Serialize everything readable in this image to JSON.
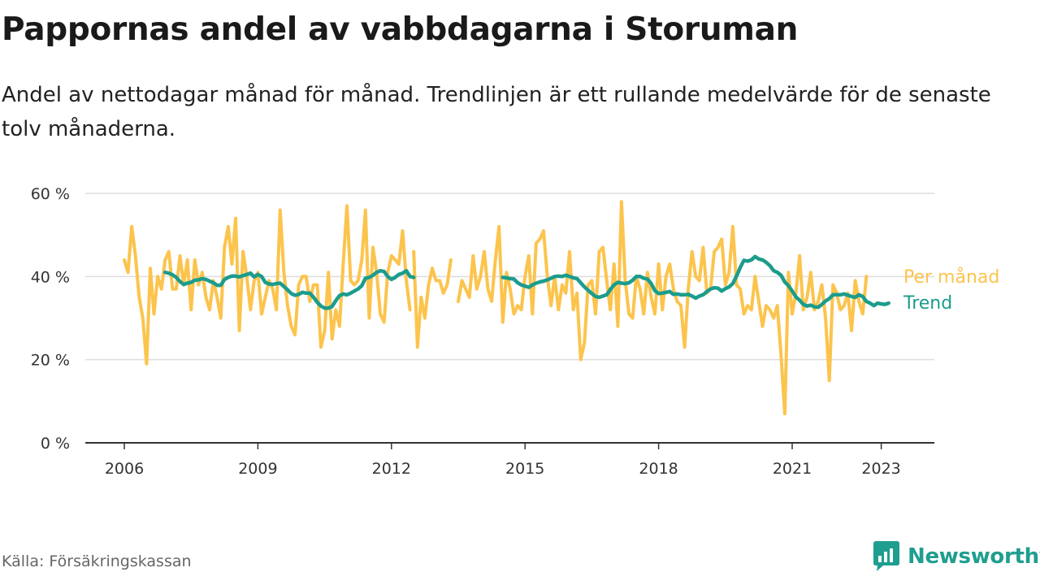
{
  "title": "Pappornas andel av vabbdagarna i Storuman",
  "subtitle": "Andel av nettodagar månad för månad. Trendlinjen är ett rullande medelvärde för de senaste tolv månaderna.",
  "source": "Källa: Försäkringskassan",
  "brand": {
    "name": "Newsworthy",
    "icon": "newsworthy-chart-logo-icon"
  },
  "colors": {
    "monthly": "#fcc44d",
    "trend": "#1c9c8c",
    "grid": "#dddddd",
    "axis": "#333333"
  },
  "chart_data": {
    "type": "line",
    "x_unit": "year (decimal, monthly points)",
    "xlim": [
      2005.8,
      2024.0
    ],
    "ylim": [
      0,
      60
    ],
    "y_ticks": [
      0,
      20,
      40,
      60
    ],
    "y_tick_labels": [
      "0 %",
      "20 %",
      "40 %",
      "60 %"
    ],
    "x_ticks": [
      2006,
      2009,
      2012,
      2015,
      2018,
      2021,
      2023
    ],
    "x_tick_labels": [
      "2006",
      "2009",
      "2012",
      "2015",
      "2018",
      "2021",
      "2023"
    ],
    "grid": true,
    "series": [
      {
        "name": "Per månad",
        "color": "#fcc44d",
        "segments": [
          {
            "start": 2006.0,
            "step": 0.0833333,
            "values": [
              44,
              41,
              52,
              45,
              35,
              30,
              19,
              42,
              31,
              40,
              37,
              44,
              46,
              37,
              37,
              45,
              38,
              44,
              32,
              44,
              38,
              41,
              35,
              32,
              39,
              35,
              30,
              47,
              52,
              43,
              54,
              27,
              46,
              40,
              32,
              39,
              41,
              31,
              35,
              39,
              37,
              32,
              56,
              41,
              33,
              28,
              26,
              38,
              40,
              40,
              34,
              38,
              38,
              23,
              27,
              41,
              25,
              32,
              28,
              43,
              57,
              39,
              38,
              39,
              44,
              56,
              30,
              47,
              41,
              31,
              29,
              41,
              45,
              44,
              43,
              51,
              39,
              32
            ]
          },
          {
            "start": 2012.5,
            "step": 0.0833333,
            "values": [
              46,
              23,
              35,
              30,
              38,
              42,
              39,
              39,
              36,
              38,
              44
            ]
          },
          {
            "start": 2013.5,
            "step": 0.0833333,
            "values": [
              34,
              39,
              37,
              35,
              45,
              37,
              40,
              46,
              37,
              34,
              44,
              52,
              29,
              41,
              37,
              31,
              33,
              32,
              40,
              45,
              31,
              48,
              49,
              51,
              40,
              33,
              40,
              32,
              38,
              36,
              46,
              32,
              36,
              20,
              24,
              38,
              39,
              31,
              46,
              47,
              39,
              32,
              43,
              28,
              58,
              39,
              31,
              30,
              40,
              37,
              31,
              41,
              35,
              31,
              43,
              32,
              40,
              43,
              37,
              34,
              33,
              23,
              37,
              46,
              40,
              39,
              47,
              36,
              37,
              46,
              47,
              49,
              38,
              41,
              52,
              38,
              37,
              31,
              33,
              32,
              40,
              34,
              28,
              33,
              32,
              30,
              33,
              21,
              7,
              41,
              31,
              36,
              45,
              32,
              35,
              41,
              32,
              34,
              38,
              30,
              15,
              38,
              36,
              32,
              33,
              36,
              27,
              39,
              34,
              31,
              40
            ]
          }
        ]
      },
      {
        "name": "Trend",
        "color": "#1c9c8c",
        "segments": [
          {
            "start": 2006.9167,
            "step": 0.0833333,
            "values": [
              41,
              40.8,
              40.4,
              39.8,
              38.8,
              38.1,
              38.4,
              38.6,
              39.1,
              39.2,
              39.5,
              39.3,
              38.9,
              38.5,
              37.9,
              37.9,
              39.3,
              39.8,
              40.1,
              40.1,
              39.9,
              40.2,
              40.5,
              40.8,
              39.9,
              40.5,
              40.0,
              38.6,
              38.2,
              38.1,
              38.3,
              38.4,
              37.6,
              36.8,
              35.9,
              35.5,
              35.7,
              36.2,
              36.0,
              36.0,
              35.0,
              33.8,
              32.9,
              32.4,
              32.4,
              32.8,
              34.2,
              35.4,
              35.8,
              35.6,
              36.0,
              36.5,
              37.0,
              37.8,
              39.6,
              39.8,
              40.3,
              41.0,
              41.4,
              41.2,
              40.0,
              39.3,
              39.8,
              40.5,
              40.8,
              41.4,
              40.0,
              39.8
            ]
          },
          {
            "start": 2014.5,
            "step": 0.0833333,
            "values": [
              39.8,
              39.7,
              39.5,
              39.4,
              38.5,
              38.0,
              37.7,
              37.4,
              38.0,
              38.4,
              38.7,
              38.9,
              39.2,
              39.6,
              40.0,
              40.1,
              40.0,
              40.3,
              40.0,
              39.7,
              39.5,
              38.5,
              37.5,
              36.7,
              35.9,
              35.2,
              35.0,
              35.3,
              35.6,
              36.9,
              38.0,
              38.6,
              38.4,
              38.3,
              38.5,
              39.1,
              40.0,
              40.0,
              39.6,
              39.4,
              38.3,
              36.6,
              35.9,
              36.0,
              36.2,
              36.4,
              35.7,
              35.8,
              35.6,
              35.6,
              35.7,
              35.3,
              34.8,
              35.3,
              35.6,
              36.4,
              37.0,
              37.3,
              37.2,
              36.5,
              37.1,
              37.5,
              38.3,
              40.1,
              42.2,
              43.9,
              43.7,
              44.0,
              44.8,
              44.2,
              44.0,
              43.4,
              42.6,
              41.4,
              41.0,
              40.3,
              38.7,
              37.8,
              36.5,
              35.1,
              34.3,
              33.3,
              32.9,
              33.1,
              32.7,
              32.6,
              33.3,
              34.1,
              34.7,
              35.6,
              35.6,
              35.6,
              35.8,
              35.5,
              35.2,
              35.0,
              35.6,
              35.2,
              34.0,
              33.6,
              33.0,
              33.6,
              33.4,
              33.3,
              33.6
            ]
          }
        ]
      }
    ],
    "legend_position": "right end of lines"
  }
}
